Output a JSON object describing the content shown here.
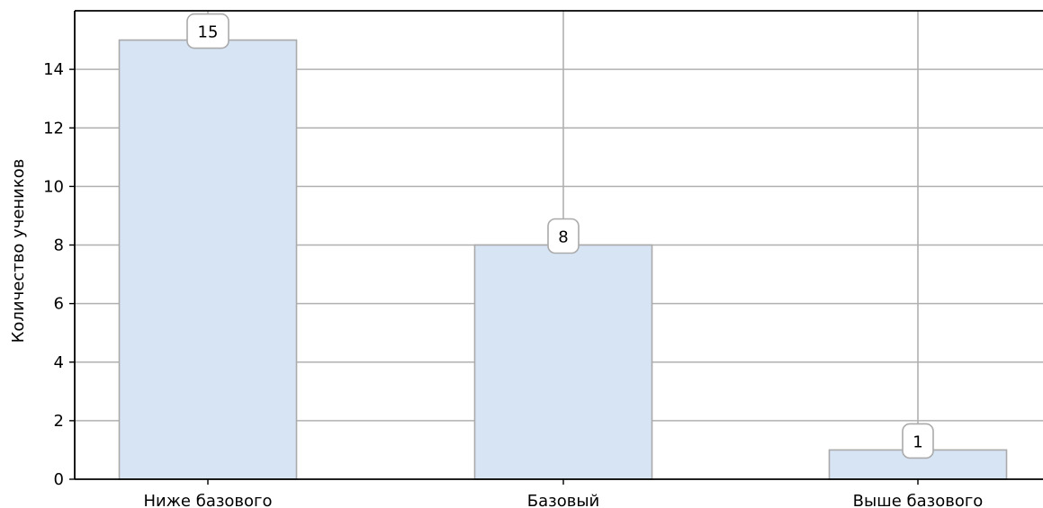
{
  "chart_data": {
    "type": "bar",
    "title": "",
    "xlabel": "",
    "ylabel": "Количество учеников",
    "categories": [
      "Ниже базового",
      "Базовый",
      "Выше базового"
    ],
    "values": [
      15,
      8,
      1
    ],
    "data_labels": [
      "15",
      "8",
      "1"
    ],
    "ylim": [
      0,
      16
    ],
    "yticks": [
      0,
      2,
      4,
      6,
      8,
      10,
      12,
      14
    ],
    "ytick_labels": [
      "0",
      "2",
      "4",
      "6",
      "8",
      "10",
      "12",
      "14"
    ],
    "grid": true,
    "legend": "none",
    "colors": {
      "bar_fill": "#d6e4f4",
      "bar_edge": "#aaaaaa",
      "grid": "#b0b0b0",
      "axis": "#000000",
      "label_box_edge": "#aaaaaa",
      "label_box_fill": "#ffffff"
    }
  }
}
